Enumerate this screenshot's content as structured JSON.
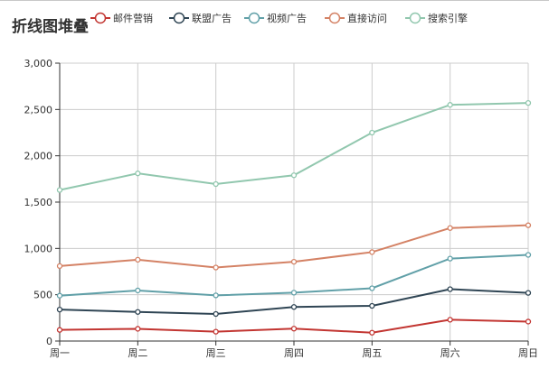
{
  "chart_data": {
    "type": "line",
    "title": "折线图堆叠",
    "categories": [
      "周一",
      "周二",
      "周三",
      "周四",
      "周五",
      "周六",
      "周日"
    ],
    "yticks": [
      "0",
      "500",
      "1,000",
      "1,500",
      "2,000",
      "2,500",
      "3,000"
    ],
    "ylim": [
      0,
      3000
    ],
    "stacked": true,
    "grid": true,
    "legend_position": "top",
    "series": [
      {
        "name": "邮件营销",
        "color": "#c23531",
        "values": [
          120,
          132,
          101,
          134,
          90,
          230,
          210
        ]
      },
      {
        "name": "联盟广告",
        "color": "#2f4554",
        "values": [
          220,
          182,
          191,
          234,
          290,
          330,
          310
        ]
      },
      {
        "name": "视频广告",
        "color": "#61a0a8",
        "values": [
          150,
          232,
          201,
          154,
          190,
          330,
          410
        ]
      },
      {
        "name": "直接访问",
        "color": "#d48265",
        "values": [
          320,
          332,
          301,
          334,
          390,
          330,
          320
        ]
      },
      {
        "name": "搜索引擎",
        "color": "#91c7ae",
        "values": [
          820,
          932,
          901,
          934,
          1290,
          1330,
          1320
        ]
      }
    ]
  }
}
